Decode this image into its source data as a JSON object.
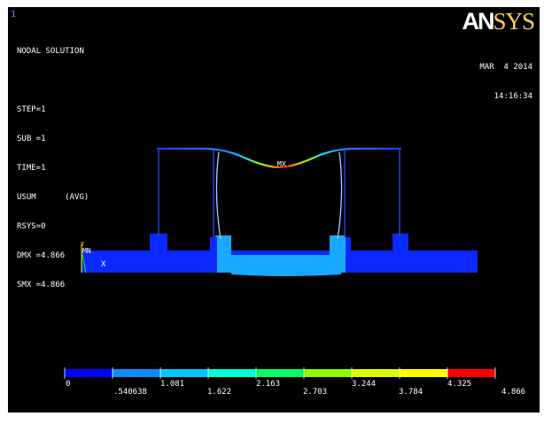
{
  "window": {
    "number": "1"
  },
  "info_lines": [
    "NODAL SOLUTION",
    "",
    "STEP=1",
    "SUB =1",
    "TIME=1",
    "USUM      (AVG)",
    "RSYS=0",
    "DMX =4.866",
    "SMX =4.866"
  ],
  "logo": {
    "part1": "AN",
    "part2": "SYS"
  },
  "date": {
    "line1": "MAR  4 2014",
    "line2": "14:16:34"
  },
  "markers": {
    "max": "MX",
    "min": "MN",
    "axis_x": "X",
    "axis_y": "Y"
  },
  "legend": {
    "colors": [
      "#0000ff",
      "#0a8cff",
      "#00c8ff",
      "#00ffd2",
      "#00ff64",
      "#8cff00",
      "#dcff00",
      "#ffff00",
      "#ffa800",
      "#ff0000"
    ],
    "upper_labels": [
      "0",
      "1.081",
      "2.163",
      "3.244",
      "4.325"
    ],
    "lower_labels": [
      ".540638",
      "1.622",
      "2.703",
      "3.784",
      "4.866"
    ]
  }
}
